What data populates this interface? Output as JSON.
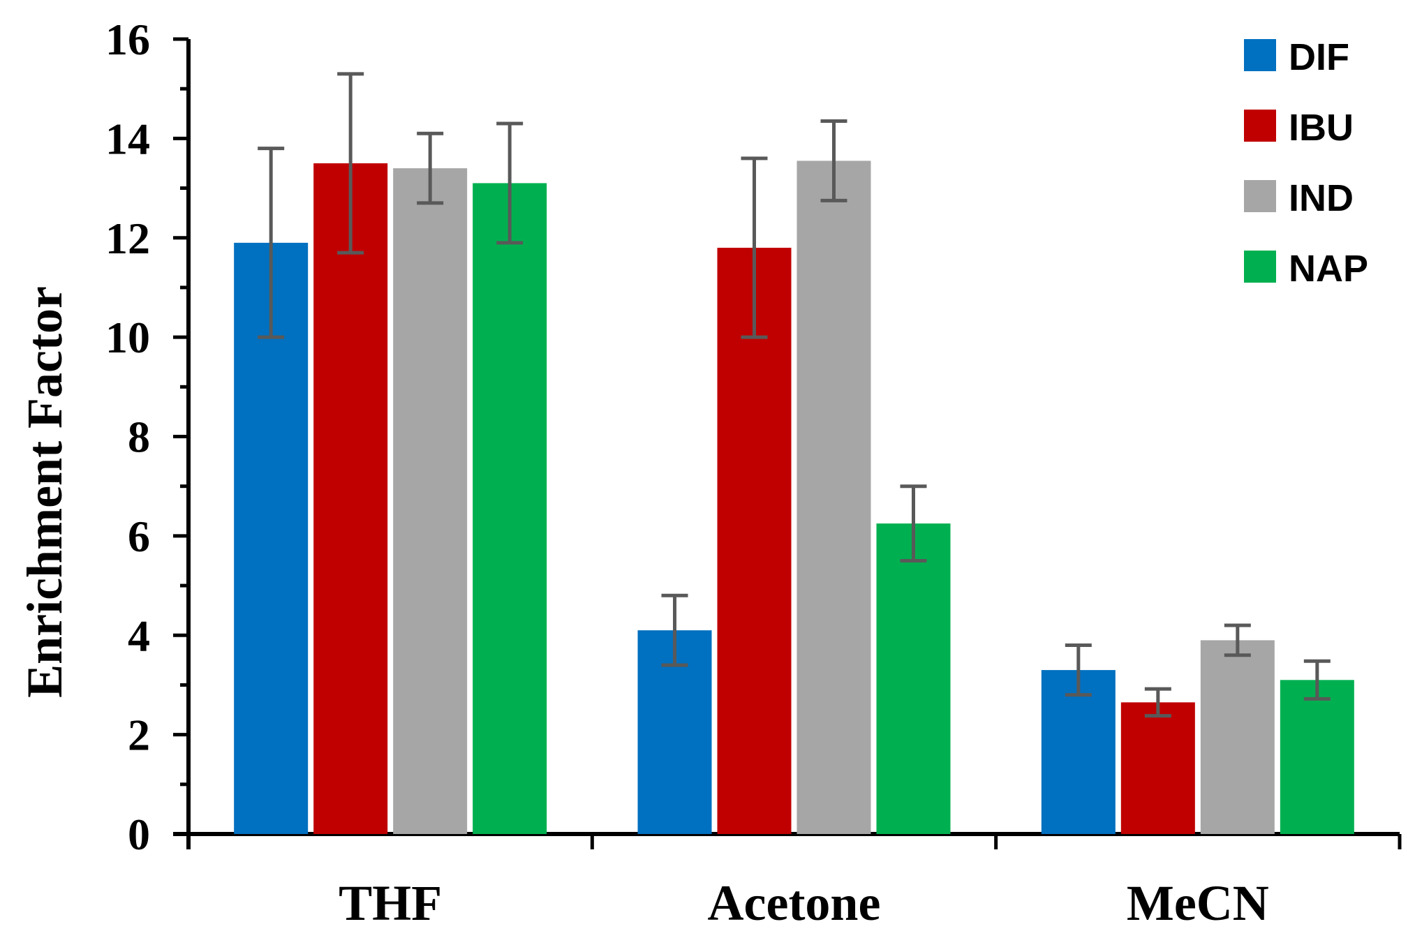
{
  "chart_data": {
    "type": "bar",
    "title": "",
    "xlabel": "",
    "ylabel": "Enrichment Factor",
    "ylim": [
      0,
      16
    ],
    "yticks": [
      0,
      2,
      4,
      6,
      8,
      10,
      12,
      14,
      16
    ],
    "ytick_labels": [
      "0",
      "2",
      "4",
      "6",
      "8",
      "10",
      "12",
      "14",
      "16"
    ],
    "categories": [
      "THF",
      "Acetone",
      "MeCN"
    ],
    "legend_position": "top-right",
    "series": [
      {
        "name": "DIF",
        "color": "#0070C0",
        "values": [
          11.9,
          4.1,
          3.3
        ],
        "errors": [
          1.9,
          0.7,
          0.5
        ]
      },
      {
        "name": "IBU",
        "color": "#C00000",
        "values": [
          13.5,
          11.8,
          2.65
        ],
        "errors": [
          1.8,
          1.8,
          0.27
        ]
      },
      {
        "name": "IND",
        "color": "#A6A6A6",
        "values": [
          13.4,
          13.55,
          3.9
        ],
        "errors": [
          0.7,
          0.8,
          0.3
        ]
      },
      {
        "name": "NAP",
        "color": "#00B050",
        "values": [
          13.1,
          6.25,
          3.1
        ],
        "errors": [
          1.2,
          0.75,
          0.38
        ]
      }
    ],
    "error_bar_color": "#595959"
  }
}
